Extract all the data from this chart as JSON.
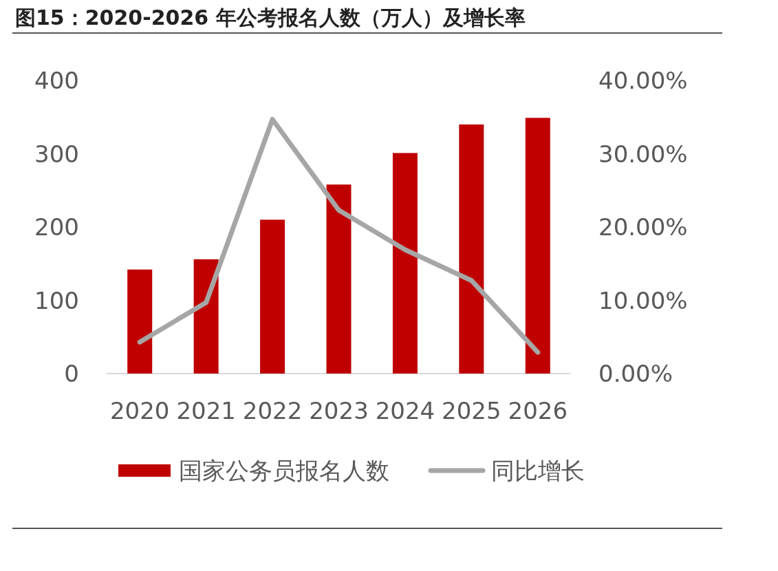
{
  "chart_data": {
    "type": "bar",
    "title": "图15：2020-2026 年公考报名人数（万人）及增长率",
    "categories": [
      "2020",
      "2021",
      "2022",
      "2023",
      "2024",
      "2025",
      "2026"
    ],
    "series": [
      {
        "name": "国家公务员报名人数",
        "color": "#c00000",
        "values": [
          142,
          156,
          210,
          258,
          301,
          340,
          349
        ]
      },
      {
        "name": "同比增长",
        "type": "line",
        "axis": "y2",
        "color": "#a6a6a6",
        "values": [
          4.3,
          9.7,
          34.7,
          22.3,
          16.9,
          12.7,
          2.9
        ]
      }
    ],
    "ylim": [
      0,
      400
    ],
    "yticks": [
      0,
      100,
      200,
      300,
      400
    ],
    "y2lim": [
      0,
      40
    ],
    "y2ticks": [
      {
        "value": 0,
        "label": "0.00%"
      },
      {
        "value": 10,
        "label": "10.00%"
      },
      {
        "value": 20,
        "label": "20.00%"
      },
      {
        "value": 30,
        "label": "30.00%"
      },
      {
        "value": 40,
        "label": "40.00%"
      }
    ],
    "grid": false,
    "legend": "bottom"
  }
}
